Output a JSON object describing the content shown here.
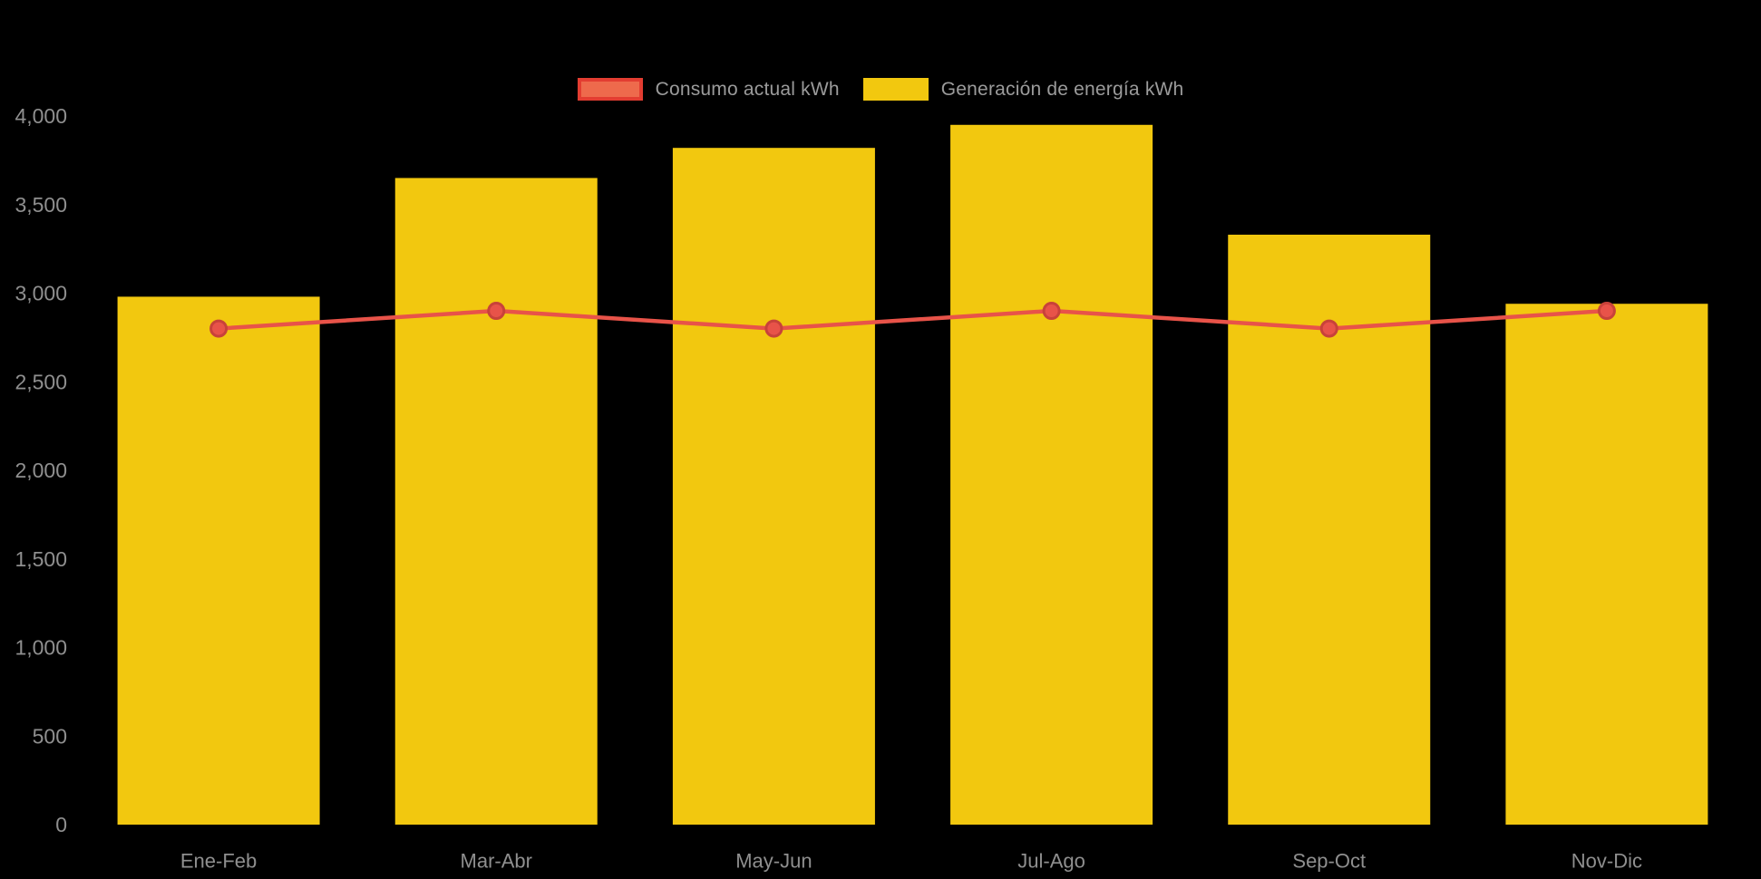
{
  "chart_data": {
    "type": "bar",
    "subtype": "bar-with-line-overlay",
    "categories": [
      "Ene-Feb",
      "Mar-Abr",
      "May-Jun",
      "Jul-Ago",
      "Sep-Oct",
      "Nov-Dic"
    ],
    "series": [
      {
        "name": "Consumo actual kWh",
        "type": "line",
        "color": "#e85349",
        "marker_stroke": "#c8423a",
        "values": [
          2800,
          2900,
          2800,
          2900,
          2800,
          2900
        ]
      },
      {
        "name": "Generación de energía kWh",
        "type": "bar",
        "color": "#f2c80f",
        "values": [
          2980,
          3650,
          3820,
          3950,
          3330,
          2940
        ]
      }
    ],
    "title": "",
    "xlabel": "",
    "ylabel": "",
    "ylim": [
      0,
      4000
    ],
    "ytick_values": [
      0,
      500,
      1000,
      1500,
      2000,
      2500,
      3000,
      3500,
      4000
    ],
    "ytick_labels": [
      "0",
      "500",
      "1,000",
      "1,500",
      "2,000",
      "2,500",
      "3,000",
      "3,500",
      "4,000"
    ],
    "grid": false,
    "legend_position": "top-center",
    "background_color": "#000000",
    "text_color": "#8f8f8f"
  },
  "legend": {
    "consumo_swatch_fill": "#ee6a4c",
    "consumo_swatch_border": "#e33d31",
    "generacion_swatch_fill": "#f2c80f"
  }
}
